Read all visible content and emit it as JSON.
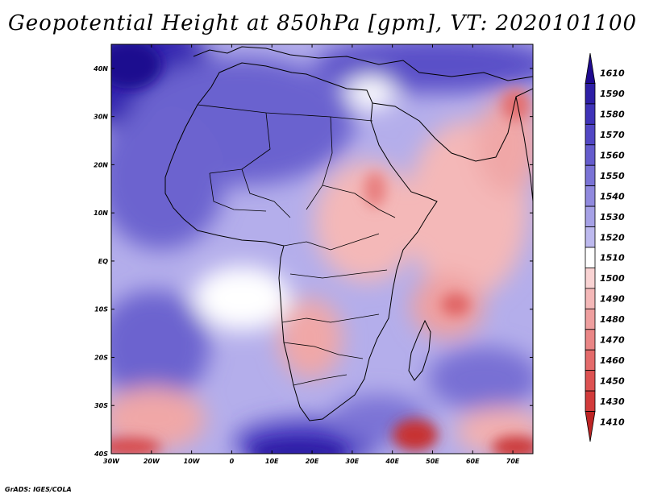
{
  "title": "Geopotential Height at 850hPa [gpm], VT: 2020101100",
  "footer": "GrADS: IGES/COLA",
  "map": {
    "lon_range": [
      -30,
      75
    ],
    "lat_range": [
      -40,
      45
    ],
    "lat_ticks": [
      {
        "value": 40,
        "label": "40N"
      },
      {
        "value": 30,
        "label": "30N"
      },
      {
        "value": 20,
        "label": "20N"
      },
      {
        "value": 10,
        "label": "10N"
      },
      {
        "value": 0,
        "label": "EQ"
      },
      {
        "value": -10,
        "label": "10S"
      },
      {
        "value": -20,
        "label": "20S"
      },
      {
        "value": -30,
        "label": "30S"
      },
      {
        "value": -40,
        "label": "40S"
      }
    ],
    "lon_ticks": [
      {
        "value": -30,
        "label": "30W"
      },
      {
        "value": -20,
        "label": "20W"
      },
      {
        "value": -10,
        "label": "10W"
      },
      {
        "value": 0,
        "label": "0"
      },
      {
        "value": 10,
        "label": "10E"
      },
      {
        "value": 20,
        "label": "20E"
      },
      {
        "value": 30,
        "label": "30E"
      },
      {
        "value": 40,
        "label": "40E"
      },
      {
        "value": 50,
        "label": "50E"
      },
      {
        "value": 60,
        "label": "60E"
      },
      {
        "value": 70,
        "label": "70E"
      }
    ]
  },
  "colorbar": {
    "levels": [
      {
        "label": "1610",
        "color": "#1f0a8f"
      },
      {
        "label": "1590",
        "color": "#2e1fa6"
      },
      {
        "label": "1580",
        "color": "#3f33b8"
      },
      {
        "label": "1570",
        "color": "#5247c4"
      },
      {
        "label": "1560",
        "color": "#655ccd"
      },
      {
        "label": "1550",
        "color": "#7a73d6"
      },
      {
        "label": "1540",
        "color": "#9089de"
      },
      {
        "label": "1530",
        "color": "#a6a1e6"
      },
      {
        "label": "1520",
        "color": "#bdb9ee"
      },
      {
        "label": "1510",
        "color": "#ffffff"
      },
      {
        "label": "1500",
        "color": "#f9d3d3"
      },
      {
        "label": "1490",
        "color": "#f4b8b8"
      },
      {
        "label": "1480",
        "color": "#ef9f9f"
      },
      {
        "label": "1470",
        "color": "#ea8686"
      },
      {
        "label": "1460",
        "color": "#e46b6b"
      },
      {
        "label": "1450",
        "color": "#dd5252"
      },
      {
        "label": "1430",
        "color": "#d23b3b"
      },
      {
        "label": "1410",
        "color": "#bd2424"
      }
    ]
  }
}
